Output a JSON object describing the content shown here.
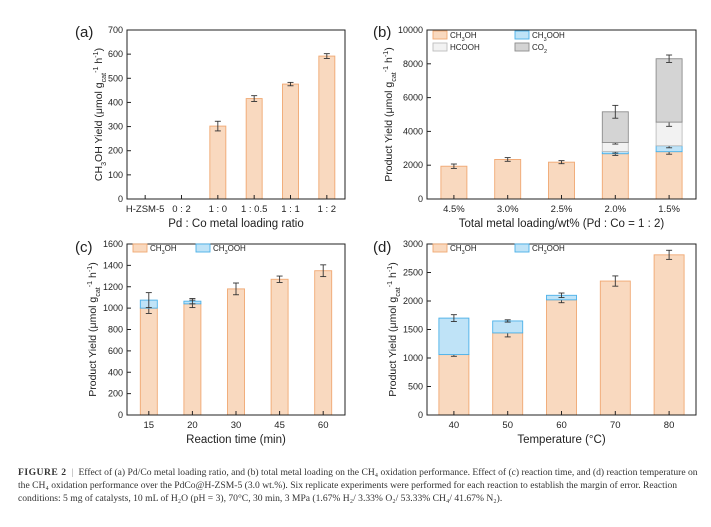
{
  "colors": {
    "ch3oh_fill": "#f9d9bf",
    "ch3oh_stroke": "#f0a872",
    "ch3ooh_fill": "#bfe3f7",
    "ch3ooh_stroke": "#4ab0e8",
    "hcooh_fill": "#f2f2f2",
    "hcooh_stroke": "#bdbdbd",
    "co2_fill": "#d4d4d4",
    "co2_stroke": "#8c8c8c"
  },
  "chart_data": [
    {
      "panel": "(a)",
      "type": "bar",
      "title": "",
      "xlabel": "Pd : Co metal loading ratio",
      "ylabel": "CH3OH Yield (μmol gcat-1 h-1)",
      "ylabel_parts": [
        "CH",
        "3",
        "OH Yield (μmol g",
        "cat",
        "-1",
        " h",
        "-1",
        ")"
      ],
      "categories": [
        "H-ZSM-5",
        "0 : 2",
        "1 : 0",
        "1 : 0.5",
        "1 : 1",
        "1 : 2"
      ],
      "ylim": [
        0,
        700
      ],
      "yticks": [
        0,
        100,
        200,
        300,
        400,
        500,
        600,
        700
      ],
      "series": [
        {
          "name": "CH3OH",
          "values": [
            0,
            0,
            302,
            416,
            476,
            592
          ],
          "errors": [
            0,
            0,
            20,
            12,
            7,
            10
          ]
        }
      ],
      "legend": []
    },
    {
      "panel": "(b)",
      "type": "bar",
      "stacked": true,
      "title": "",
      "xlabel": "Total metal loading/wt% (Pd : Co = 1 : 2)",
      "ylabel": "Product Yield (μmol gcat-1 h-1)",
      "ylabel_parts": [
        "Product Yield (μmol g",
        "cat",
        "-1",
        " h",
        "-1",
        ")"
      ],
      "categories": [
        "4.5%",
        "3.0%",
        "2.5%",
        "2.0%",
        "1.5%"
      ],
      "ylim": [
        0,
        10000
      ],
      "yticks": [
        0,
        2000,
        4000,
        6000,
        8000,
        10000
      ],
      "series": [
        {
          "name": "CH3OH",
          "key": "ch3oh",
          "values": [
            1940,
            2340,
            2180,
            2680,
            2800
          ],
          "errors": [
            130,
            110,
            90,
            100,
            150
          ]
        },
        {
          "name": "CH3OOH",
          "key": "ch3ooh",
          "values": [
            0,
            0,
            0,
            130,
            350
          ],
          "errors": [
            0,
            0,
            0,
            90,
            120
          ]
        },
        {
          "name": "HCOOH",
          "key": "hcooh",
          "values": [
            0,
            0,
            0,
            530,
            1400
          ],
          "errors": [
            0,
            0,
            0,
            90,
            250
          ]
        },
        {
          "name": "CO2",
          "key": "co2",
          "values": [
            0,
            0,
            0,
            1820,
            3750
          ],
          "errors": [
            0,
            0,
            0,
            380,
            220
          ]
        }
      ],
      "legend": [
        "CH3OH",
        "CH3OOH",
        "HCOOH",
        "CO2"
      ]
    },
    {
      "panel": "(c)",
      "type": "bar",
      "stacked": true,
      "title": "",
      "xlabel": "Reaction time (min)",
      "ylabel": "Product Yield (μmol gcat-1 h-1)",
      "ylabel_parts": [
        "Product Yield (μmol g",
        "cat",
        "-1",
        " h",
        "-1",
        ")"
      ],
      "categories": [
        "15",
        "20",
        "30",
        "45",
        "60"
      ],
      "ylim": [
        0,
        1600
      ],
      "yticks": [
        0,
        200,
        400,
        600,
        800,
        1000,
        1200,
        1400,
        1600
      ],
      "series": [
        {
          "name": "CH3OH",
          "key": "ch3oh",
          "values": [
            1000,
            1040,
            1180,
            1270,
            1350
          ],
          "errors": [
            50,
            35,
            55,
            30,
            55
          ]
        },
        {
          "name": "CH3OOH",
          "key": "ch3ooh",
          "values": [
            75,
            25,
            0,
            0,
            0
          ],
          "errors": [
            70,
            25,
            0,
            0,
            0
          ]
        }
      ],
      "legend": [
        "CH3OH",
        "CH3OOH"
      ]
    },
    {
      "panel": "(d)",
      "type": "bar",
      "stacked": true,
      "title": "",
      "xlabel": "Temperature (°C)",
      "ylabel": "Product Yield (μmol gcat-1 h-1)",
      "ylabel_parts": [
        "Product Yield (μmol g",
        "cat",
        "-1",
        " h",
        "-1",
        ")"
      ],
      "categories": [
        "40",
        "50",
        "60",
        "70",
        "80"
      ],
      "ylim": [
        0,
        3000
      ],
      "yticks": [
        0,
        500,
        1000,
        1500,
        2000,
        2500,
        3000
      ],
      "series": [
        {
          "name": "CH3OH",
          "key": "ch3oh",
          "values": [
            1060,
            1440,
            2020,
            2350,
            2810
          ],
          "errors": [
            30,
            70,
            50,
            90,
            80
          ]
        },
        {
          "name": "CH3OOH",
          "key": "ch3ooh",
          "values": [
            640,
            210,
            80,
            0,
            0
          ],
          "errors": [
            60,
            20,
            40,
            0,
            0
          ]
        }
      ],
      "legend": [
        "CH3OH",
        "CH3OOH"
      ]
    }
  ],
  "caption": {
    "label": "FIGURE 2",
    "separator": "|",
    "text": "Effect of (a) Pd/Co metal loading ratio, and (b) total metal loading on the CH₄ oxidation performance. Effect of (c) reaction time, and (d) reaction temperature on the CH₄ oxidation performance over the PdCo@H-ZSM-5 (3.0 wt.%). Six replicate experiments were performed for each reaction to establish the margin of error. Reaction conditions: 5 mg of catalysts, 10 mL of H₂O (pH = 3), 70°C, 30 min, 3 MPa (1.67% H₂/ 3.33% O₂/ 53.33% CH₄/ 41.67% N₂)."
  }
}
